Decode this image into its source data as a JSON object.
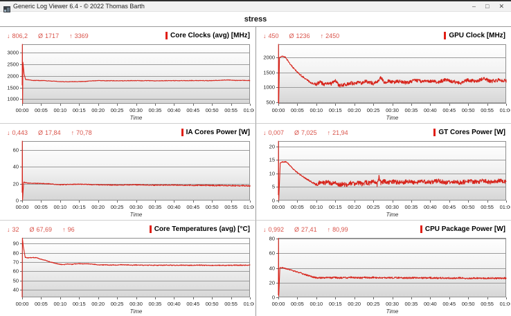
{
  "window": {
    "title": "Generic Log Viewer 6.4 - © 2022 Thomas Barth",
    "controls": {
      "minimize": "–",
      "maximize": "□",
      "close": "✕"
    }
  },
  "tab": {
    "label": "stress"
  },
  "stat_symbols": {
    "min": "↓",
    "avg": "Ø",
    "max": "↑"
  },
  "colors": {
    "series": "#d7241b",
    "stats_text": "#d9534a",
    "legend_bar": "#e01e14",
    "grid": "#9b9b9b",
    "plot_border": "#8f8f8f"
  },
  "x_axis": {
    "labels": [
      "00:00",
      "00:05",
      "00:10",
      "00:15",
      "00:20",
      "00:25",
      "00:30",
      "00:35",
      "00:40",
      "00:45",
      "00:50",
      "00:55",
      "01:00"
    ],
    "tick_minutes": [
      0,
      5,
      10,
      15,
      20,
      25,
      30,
      35,
      40,
      45,
      50,
      55,
      60
    ],
    "label": "Time",
    "range_minutes": [
      0,
      60
    ]
  },
  "chart_data": [
    {
      "id": "core-clocks",
      "type": "line",
      "title": "Core Clocks (avg) [MHz]",
      "stats": {
        "min": "806,2",
        "avg": "1717",
        "max": "3369"
      },
      "ylim": [
        806.2,
        3369
      ],
      "yticks": [
        1000,
        1500,
        2000,
        2500,
        3000
      ],
      "points": [
        [
          0,
          1600
        ],
        [
          0.05,
          3369
        ],
        [
          0.12,
          806.2
        ],
        [
          0.2,
          2600
        ],
        [
          0.5,
          2100
        ],
        [
          0.9,
          1850
        ],
        [
          3,
          1810
        ],
        [
          6,
          1800
        ],
        [
          9,
          1770
        ],
        [
          11,
          1755
        ],
        [
          14,
          1760
        ],
        [
          17,
          1770
        ],
        [
          19,
          1800
        ],
        [
          25,
          1795
        ],
        [
          30,
          1800
        ],
        [
          35,
          1795
        ],
        [
          40,
          1800
        ],
        [
          45,
          1805
        ],
        [
          50,
          1800
        ],
        [
          54,
          1830
        ],
        [
          56,
          1810
        ],
        [
          60,
          1810
        ]
      ],
      "noise": [
        [
          0,
          6
        ],
        [
          1,
          10
        ],
        [
          60,
          12
        ]
      ]
    },
    {
      "id": "gpu-clock",
      "type": "line",
      "title": "GPU Clock [MHz]",
      "stats": {
        "min": "450",
        "avg": "1236",
        "max": "2450"
      },
      "ylim": [
        450,
        2450
      ],
      "yticks": [
        500,
        1000,
        1500,
        2000
      ],
      "points": [
        [
          0,
          500
        ],
        [
          0.04,
          2450
        ],
        [
          0.1,
          450
        ],
        [
          0.3,
          2000
        ],
        [
          1,
          2050
        ],
        [
          1.8,
          2020
        ],
        [
          2.2,
          1950
        ],
        [
          3,
          1800
        ],
        [
          4,
          1650
        ],
        [
          5,
          1520
        ],
        [
          6,
          1400
        ],
        [
          7,
          1300
        ],
        [
          8,
          1200
        ],
        [
          9,
          1120
        ],
        [
          10,
          1100
        ],
        [
          11,
          1180
        ],
        [
          12,
          1100
        ],
        [
          13,
          1150
        ],
        [
          14,
          1120
        ],
        [
          15,
          1220
        ],
        [
          16,
          1050
        ],
        [
          17,
          1080
        ],
        [
          18,
          1100
        ],
        [
          19,
          1150
        ],
        [
          20,
          1120
        ],
        [
          21,
          1180
        ],
        [
          22,
          1150
        ],
        [
          23,
          1200
        ],
        [
          24,
          1180
        ],
        [
          25,
          1120
        ],
        [
          26,
          1200
        ],
        [
          27,
          1350
        ],
        [
          28,
          1150
        ],
        [
          29,
          1220
        ],
        [
          30,
          1180
        ],
        [
          32,
          1200
        ],
        [
          34,
          1150
        ],
        [
          36,
          1250
        ],
        [
          38,
          1200
        ],
        [
          40,
          1220
        ],
        [
          42,
          1180
        ],
        [
          44,
          1250
        ],
        [
          46,
          1200
        ],
        [
          48,
          1150
        ],
        [
          50,
          1250
        ],
        [
          52,
          1200
        ],
        [
          54,
          1300
        ],
        [
          56,
          1200
        ],
        [
          58,
          1250
        ],
        [
          60,
          1220
        ]
      ],
      "noise": [
        [
          0,
          8
        ],
        [
          2,
          18
        ],
        [
          8.5,
          35
        ],
        [
          9.5,
          60
        ],
        [
          60,
          60
        ]
      ]
    },
    {
      "id": "ia-cores-power",
      "type": "line",
      "title": "IA Cores Power [W]",
      "stats": {
        "min": "0,443",
        "avg": "17,84",
        "max": "70,78"
      },
      "ylim": [
        0,
        70.78
      ],
      "yticks": [
        0,
        20,
        40,
        60
      ],
      "points": [
        [
          0,
          10
        ],
        [
          0.04,
          70.78
        ],
        [
          0.1,
          0.443
        ],
        [
          0.4,
          22
        ],
        [
          1,
          21
        ],
        [
          3,
          20.5
        ],
        [
          5,
          20.3
        ],
        [
          7,
          20
        ],
        [
          9,
          19
        ],
        [
          10,
          18.8
        ],
        [
          15,
          19.5
        ],
        [
          20,
          18.8
        ],
        [
          25,
          18.5
        ],
        [
          30,
          18.8
        ],
        [
          35,
          18.3
        ],
        [
          40,
          18.5
        ],
        [
          45,
          18.2
        ],
        [
          50,
          18
        ],
        [
          55,
          17.8
        ],
        [
          60,
          17.5
        ]
      ],
      "noise": [
        [
          0,
          0.4
        ],
        [
          60,
          0.8
        ]
      ]
    },
    {
      "id": "gt-cores-power",
      "type": "line",
      "title": "GT Cores Power [W]",
      "stats": {
        "min": "0,007",
        "avg": "7,025",
        "max": "21,94"
      },
      "ylim": [
        0,
        21.94
      ],
      "yticks": [
        0,
        5,
        10,
        15,
        20
      ],
      "points": [
        [
          0,
          2
        ],
        [
          0.03,
          21.94
        ],
        [
          0.1,
          0.007
        ],
        [
          0.5,
          13.8
        ],
        [
          1,
          14.2
        ],
        [
          2,
          14.3
        ],
        [
          2.5,
          13.8
        ],
        [
          4,
          11.5
        ],
        [
          5,
          10.3
        ],
        [
          6,
          9.3
        ],
        [
          7,
          8.3
        ],
        [
          8,
          7.5
        ],
        [
          9,
          6.6
        ],
        [
          10,
          5.9
        ],
        [
          11,
          6.8
        ],
        [
          12,
          6.4
        ],
        [
          13,
          6.9
        ],
        [
          14,
          6.2
        ],
        [
          15,
          6.8
        ],
        [
          16,
          5.6
        ],
        [
          17,
          6.2
        ],
        [
          18,
          5.6
        ],
        [
          19,
          6.4
        ],
        [
          20,
          6.2
        ],
        [
          21,
          6.6
        ],
        [
          22,
          6.1
        ],
        [
          23,
          6.7
        ],
        [
          24,
          6.4
        ],
        [
          25,
          6.9
        ],
        [
          26,
          5.9
        ],
        [
          26.5,
          8.6
        ],
        [
          27,
          6.4
        ],
        [
          28,
          7.2
        ],
        [
          29,
          6.6
        ],
        [
          30,
          7.0
        ],
        [
          32,
          6.6
        ],
        [
          34,
          7.0
        ],
        [
          36,
          6.6
        ],
        [
          38,
          7.1
        ],
        [
          40,
          6.7
        ],
        [
          42,
          7.2
        ],
        [
          44,
          6.7
        ],
        [
          46,
          7.0
        ],
        [
          48,
          6.6
        ],
        [
          50,
          7.1
        ],
        [
          52,
          6.8
        ],
        [
          54,
          7.3
        ],
        [
          56,
          6.8
        ],
        [
          58,
          7.2
        ],
        [
          60,
          7.0
        ]
      ],
      "noise": [
        [
          0,
          0.15
        ],
        [
          9.5,
          0.3
        ],
        [
          10.5,
          0.8
        ],
        [
          60,
          0.8
        ]
      ]
    },
    {
      "id": "core-temperatures",
      "type": "line",
      "title": "Core Temperatures (avg) [°C]",
      "stats": {
        "min": "32",
        "avg": "67,69",
        "max": "96"
      },
      "ylim": [
        32,
        96
      ],
      "yticks": [
        40,
        50,
        60,
        70,
        80,
        90
      ],
      "points": [
        [
          0,
          32
        ],
        [
          0.06,
          96
        ],
        [
          0.3,
          87
        ],
        [
          0.8,
          75
        ],
        [
          1.5,
          74.5
        ],
        [
          3,
          74.8
        ],
        [
          4,
          74.5
        ],
        [
          4.5,
          73.5
        ],
        [
          6,
          72
        ],
        [
          7,
          70.5
        ],
        [
          8,
          69.5
        ],
        [
          9,
          68.3
        ],
        [
          10,
          67.5
        ],
        [
          11,
          67.3
        ],
        [
          12,
          67.8
        ],
        [
          13,
          67.5
        ],
        [
          14,
          68
        ],
        [
          15,
          68.2
        ],
        [
          16,
          68
        ],
        [
          17,
          68.3
        ],
        [
          18,
          67.8
        ],
        [
          19,
          67.5
        ],
        [
          20,
          67
        ],
        [
          21,
          66.8
        ],
        [
          22,
          67
        ],
        [
          23,
          66.7
        ],
        [
          24,
          66.9
        ],
        [
          25,
          66.5
        ],
        [
          26,
          67.2
        ],
        [
          27,
          66.8
        ],
        [
          28,
          67
        ],
        [
          29,
          66.6
        ],
        [
          30,
          66.8
        ],
        [
          32,
          66.5
        ],
        [
          34,
          66.7
        ],
        [
          36,
          66.4
        ],
        [
          38,
          66.8
        ],
        [
          40,
          66.5
        ],
        [
          42,
          66.7
        ],
        [
          44,
          66.4
        ],
        [
          46,
          66.8
        ],
        [
          48,
          66.5
        ],
        [
          50,
          66.3
        ],
        [
          52,
          66.6
        ],
        [
          54,
          66.4
        ],
        [
          56,
          66.7
        ],
        [
          58,
          66.5
        ],
        [
          60,
          66.8
        ]
      ],
      "noise": [
        [
          0,
          0.3
        ],
        [
          60,
          0.5
        ]
      ]
    },
    {
      "id": "cpu-package-power",
      "type": "line",
      "title": "CPU Package Power [W]",
      "stats": {
        "min": "0,992",
        "avg": "27,41",
        "max": "80,99"
      },
      "ylim": [
        0,
        80.99
      ],
      "yticks": [
        0,
        20,
        40,
        60,
        80
      ],
      "points": [
        [
          0,
          3
        ],
        [
          0.04,
          80.99
        ],
        [
          0.1,
          0.992
        ],
        [
          0.4,
          40
        ],
        [
          1,
          40.5
        ],
        [
          2,
          39
        ],
        [
          3,
          37.5
        ],
        [
          4,
          36
        ],
        [
          5,
          34.5
        ],
        [
          6,
          33
        ],
        [
          7,
          31
        ],
        [
          8,
          29.5
        ],
        [
          9,
          27.8
        ],
        [
          10,
          26.5
        ],
        [
          11,
          26.8
        ],
        [
          12,
          26.3
        ],
        [
          13,
          27
        ],
        [
          14,
          26.5
        ],
        [
          15,
          27.2
        ],
        [
          16,
          26.3
        ],
        [
          17,
          27
        ],
        [
          18,
          26.5
        ],
        [
          19,
          27.3
        ],
        [
          20,
          26.8
        ],
        [
          21,
          27
        ],
        [
          22,
          26.5
        ],
        [
          23,
          27
        ],
        [
          24,
          26.5
        ],
        [
          25,
          27.2
        ],
        [
          26,
          26.8
        ],
        [
          27,
          27
        ],
        [
          28,
          26.5
        ],
        [
          29,
          26.8
        ],
        [
          30,
          26.5
        ],
        [
          32,
          26.8
        ],
        [
          34,
          26.4
        ],
        [
          36,
          26.8
        ],
        [
          38,
          26.3
        ],
        [
          40,
          26.6
        ],
        [
          42,
          26.2
        ],
        [
          44,
          26.5
        ],
        [
          46,
          26
        ],
        [
          48,
          26.4
        ],
        [
          50,
          25.8
        ],
        [
          52,
          26.2
        ],
        [
          54,
          25.9
        ],
        [
          56,
          26.3
        ],
        [
          58,
          25.9
        ],
        [
          60,
          26.2
        ]
      ],
      "noise": [
        [
          0,
          0.5
        ],
        [
          10,
          1.1
        ],
        [
          60,
          1.1
        ]
      ]
    }
  ]
}
